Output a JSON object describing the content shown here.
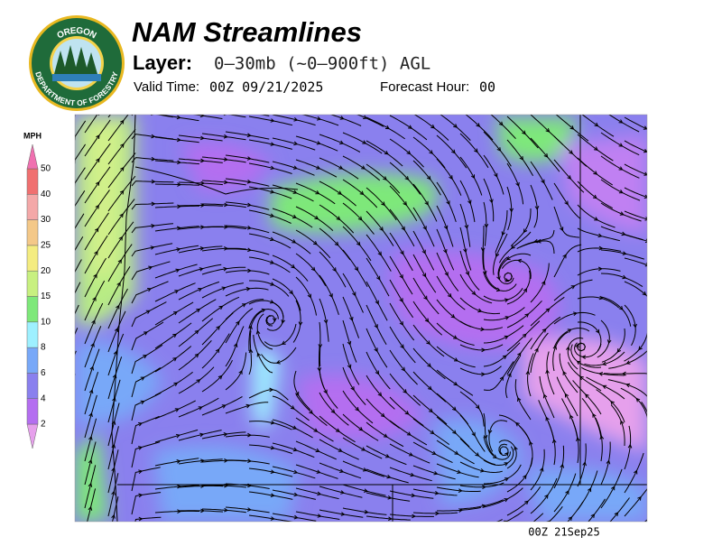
{
  "header": {
    "title": "NAM Streamlines",
    "layer_label": "Layer:",
    "layer_value": "0–30mb (~0–900ft) AGL",
    "valid_label": "Valid Time:",
    "valid_value": "00Z 09/21/2025",
    "forecast_label": "Forecast Hour:",
    "forecast_value": "00"
  },
  "logo": {
    "top_text": "OREGON",
    "bottom_text": "DEPARTMENT OF FORESTRY"
  },
  "legend": {
    "unit": "MPH",
    "levels": [
      "2",
      "4",
      "6",
      "8",
      "10",
      "15",
      "20",
      "25",
      "30",
      "40",
      "50"
    ],
    "colors": [
      "#e6a0ec",
      "#b46ef0",
      "#8a80ee",
      "#78a8f8",
      "#9ef0ff",
      "#7ee87a",
      "#c8f080",
      "#f4ec80",
      "#f4c888",
      "#f4a8a8",
      "#f07070",
      "#f070b0"
    ]
  },
  "footer": {
    "timestamp": "00Z 21Sep25"
  }
}
